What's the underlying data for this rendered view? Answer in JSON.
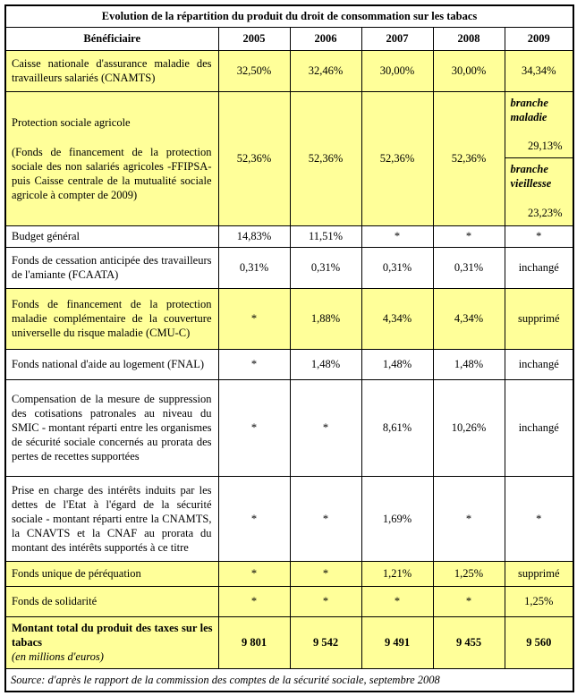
{
  "title": "Evolution de la répartition  du produit du droit de consommation sur les tabacs",
  "columns": [
    "Bénéficiaire",
    "2005",
    "2006",
    "2007",
    "2008",
    "2009"
  ],
  "rows": [
    {
      "label": "Caisse nationale d'assurance maladie des travailleurs salariés (CNAMTS)",
      "values": [
        "32,50%",
        "32,46%",
        "30,00%",
        "30,00%",
        "34,34%"
      ]
    },
    {
      "label": "Protection sociale agricole",
      "sublabel": "(Fonds de financement de la protection sociale des non salariés agricoles -FFIPSA- puis Caisse centrale de la mutualité sociale agricole à compter de 2009)",
      "values": [
        "52,36%",
        "52,36%",
        "52,36%",
        "52,36%"
      ],
      "split_2009": [
        {
          "label": "branche maladie",
          "value": "29,13%"
        },
        {
          "label": "branche vieillesse",
          "value": "23,23%"
        }
      ]
    },
    {
      "label": "Budget général",
      "values": [
        "14,83%",
        "11,51%",
        "*",
        "*",
        "*"
      ]
    },
    {
      "label": "Fonds de cessation anticipée des travailleurs de l'amiante (FCAATA)",
      "values": [
        "0,31%",
        "0,31%",
        "0,31%",
        "0,31%",
        "inchangé"
      ]
    },
    {
      "label": "Fonds de financement de la protection maladie complémentaire de la couverture universelle du risque maladie (CMU-C)",
      "values": [
        "*",
        "1,88%",
        "4,34%",
        "4,34%",
        "supprimé"
      ]
    },
    {
      "label": "Fonds national d'aide au logement (FNAL)",
      "values": [
        "*",
        "1,48%",
        "1,48%",
        "1,48%",
        "inchangé"
      ]
    },
    {
      "label": "Compensation de la mesure de suppression des cotisations patronales au niveau du SMIC - montant réparti entre les organismes de sécurité sociale concernés au prorata des pertes de recettes supportées",
      "values": [
        "*",
        "*",
        "8,61%",
        "10,26%",
        "inchangé"
      ]
    },
    {
      "label": "Prise en charge des intérêts induits par les dettes de l'Etat à l'égard de la sécurité sociale - montant réparti entre la CNAMTS, la CNAVTS et la CNAF au prorata du montant des intérêts supportés à ce titre",
      "values": [
        "*",
        "*",
        "1,69%",
        "*",
        "*"
      ]
    },
    {
      "label": "Fonds unique de péréquation",
      "values": [
        "*",
        "*",
        "1,21%",
        "1,25%",
        "supprimé"
      ]
    },
    {
      "label": "Fonds de solidarité",
      "values": [
        "*",
        "*",
        "*",
        "*",
        "1,25%"
      ]
    },
    {
      "label": "Montant total du produit des taxes sur les tabacs",
      "sublabel": "(en millions d'euros)",
      "values": [
        "9 801",
        "9 542",
        "9 491",
        "9 455",
        "9 560"
      ]
    }
  ],
  "source": "Source: d'après le rapport de la commission des comptes de la sécurité sociale, septembre 2008",
  "colors": {
    "highlight": "#FFFF99",
    "border": "#000000",
    "background": "#FFFFFF"
  }
}
